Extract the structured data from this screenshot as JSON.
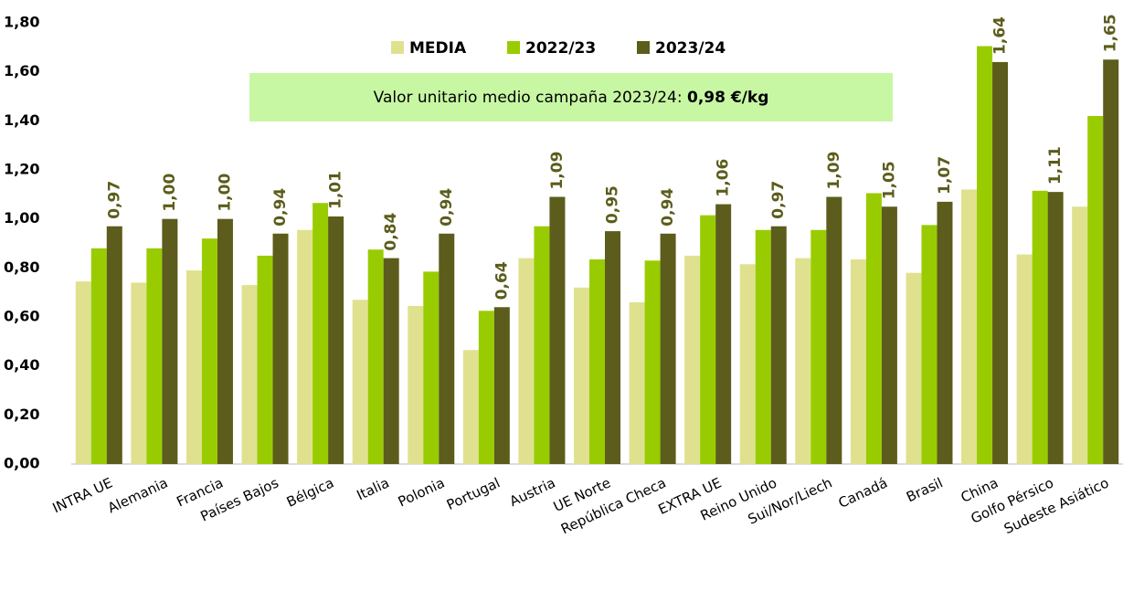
{
  "chart_data": {
    "type": "bar",
    "categories": [
      "INTRA UE",
      "Alemania",
      "Francia",
      "Países Bajos",
      "Bélgica",
      "Italia",
      "Polonia",
      "Portugal",
      "Austria",
      "UE Norte",
      "República Checa",
      "EXTRA UE",
      "Reino Unido",
      "Sui/Nor/Liech",
      "Canadá",
      "Brasil",
      "China",
      "Golfo Pérsico",
      "Sudeste Asiático"
    ],
    "series": [
      {
        "name": "MEDIA",
        "color": "#dfe18f",
        "values": [
          0.745,
          0.74,
          0.79,
          0.73,
          0.955,
          0.67,
          0.645,
          0.465,
          0.84,
          0.72,
          0.66,
          0.85,
          0.815,
          0.84,
          0.835,
          0.78,
          1.12,
          0.855,
          1.05
        ]
      },
      {
        "name": "2022/23",
        "color": "#99cc00",
        "values": [
          0.88,
          0.88,
          0.92,
          0.85,
          1.065,
          0.875,
          0.785,
          0.625,
          0.97,
          0.835,
          0.83,
          1.015,
          0.955,
          0.955,
          1.105,
          0.975,
          1.705,
          1.115,
          1.42
        ]
      },
      {
        "name": "2023/24",
        "color": "#5c5c1c",
        "values": [
          0.97,
          1.0,
          1.0,
          0.94,
          1.01,
          0.84,
          0.94,
          0.64,
          1.09,
          0.95,
          0.94,
          1.06,
          0.97,
          1.09,
          1.05,
          1.07,
          1.64,
          1.11,
          1.65
        ],
        "value_labels": [
          "0,97",
          "1,00",
          "1,00",
          "0,94",
          "1,01",
          "0,84",
          "0,94",
          "0,64",
          "1,09",
          "0,95",
          "0,94",
          "1,06",
          "0,97",
          "1,09",
          "1,05",
          "1,07",
          "1,64",
          "1,11",
          "1,65"
        ]
      }
    ],
    "annotation": {
      "text": "Valor unitario medio campaña 2023/24: ",
      "value": "0,98 €/kg"
    },
    "ylim": [
      0,
      1.8
    ],
    "yticks": [
      {
        "value": 0,
        "label": "0,00"
      },
      {
        "value": 0.2,
        "label": "0,20"
      },
      {
        "value": 0.4,
        "label": "0,40"
      },
      {
        "value": 0.6,
        "label": "0,60"
      },
      {
        "value": 0.8,
        "label": "0,80"
      },
      {
        "value": 1,
        "label": "1,00"
      },
      {
        "value": 1.2,
        "label": "1,20"
      },
      {
        "value": 1.4,
        "label": "1,40"
      },
      {
        "value": 1.6,
        "label": "1,60"
      },
      {
        "value": 1.8,
        "label": "1,80"
      }
    ],
    "grid": false
  }
}
